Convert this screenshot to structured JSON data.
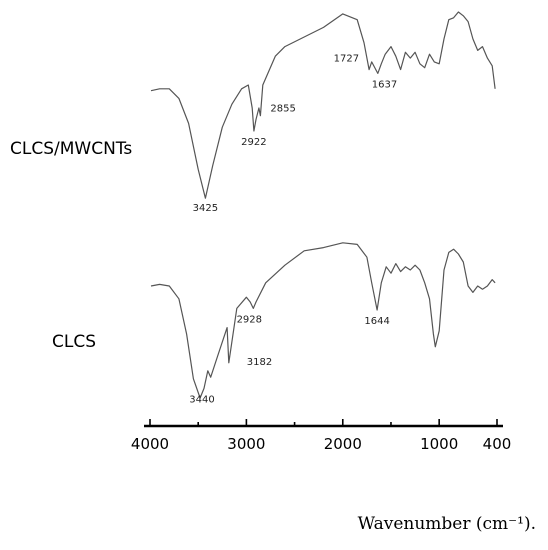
{
  "chart_data": {
    "type": "line",
    "xlabel": "Wavenumber (cm⁻¹).",
    "x_ticks": [
      4000,
      3000,
      2000,
      1000,
      400
    ],
    "xlim": [
      4000,
      400
    ],
    "x_reversed": true,
    "colors": {
      "trace": "#555555",
      "axis": "#000000"
    },
    "series": [
      {
        "name": "CLCS/MWCNTs",
        "points": [
          [
            3990,
            0.59
          ],
          [
            3900,
            0.6
          ],
          [
            3800,
            0.6
          ],
          [
            3700,
            0.55
          ],
          [
            3600,
            0.42
          ],
          [
            3500,
            0.18
          ],
          [
            3425,
            0.03
          ],
          [
            3350,
            0.2
          ],
          [
            3250,
            0.4
          ],
          [
            3150,
            0.52
          ],
          [
            3050,
            0.6
          ],
          [
            2980,
            0.62
          ],
          [
            2940,
            0.5
          ],
          [
            2922,
            0.38
          ],
          [
            2900,
            0.44
          ],
          [
            2870,
            0.5
          ],
          [
            2855,
            0.46
          ],
          [
            2830,
            0.62
          ],
          [
            2700,
            0.77
          ],
          [
            2600,
            0.82
          ],
          [
            2400,
            0.87
          ],
          [
            2200,
            0.92
          ],
          [
            2000,
            0.99
          ],
          [
            1850,
            0.96
          ],
          [
            1780,
            0.84
          ],
          [
            1727,
            0.7
          ],
          [
            1700,
            0.74
          ],
          [
            1637,
            0.68
          ],
          [
            1600,
            0.73
          ],
          [
            1560,
            0.78
          ],
          [
            1500,
            0.82
          ],
          [
            1450,
            0.77
          ],
          [
            1400,
            0.7
          ],
          [
            1350,
            0.79
          ],
          [
            1300,
            0.76
          ],
          [
            1250,
            0.79
          ],
          [
            1200,
            0.73
          ],
          [
            1150,
            0.71
          ],
          [
            1100,
            0.78
          ],
          [
            1050,
            0.74
          ],
          [
            1000,
            0.73
          ],
          [
            950,
            0.86
          ],
          [
            900,
            0.96
          ],
          [
            850,
            0.97
          ],
          [
            800,
            1.0
          ],
          [
            750,
            0.98
          ],
          [
            700,
            0.95
          ],
          [
            650,
            0.86
          ],
          [
            600,
            0.8
          ],
          [
            550,
            0.82
          ],
          [
            500,
            0.76
          ],
          [
            450,
            0.72
          ],
          [
            420,
            0.6
          ]
        ],
        "peaks": [
          {
            "x": 3425,
            "label": "3425"
          },
          {
            "x": 2922,
            "label": "2922"
          },
          {
            "x": 2855,
            "label": "2855"
          },
          {
            "x": 1727,
            "label": "1727"
          },
          {
            "x": 1637,
            "label": "1637"
          }
        ]
      },
      {
        "name": "CLCS",
        "points": [
          [
            3990,
            0.7
          ],
          [
            3900,
            0.71
          ],
          [
            3800,
            0.7
          ],
          [
            3700,
            0.62
          ],
          [
            3620,
            0.4
          ],
          [
            3550,
            0.12
          ],
          [
            3480,
            0.0
          ],
          [
            3440,
            0.06
          ],
          [
            3400,
            0.17
          ],
          [
            3370,
            0.13
          ],
          [
            3182,
            0.22
          ],
          [
            3300,
            0.26
          ],
          [
            3200,
            0.44
          ],
          [
            3100,
            0.56
          ],
          [
            3000,
            0.63
          ],
          [
            2960,
            0.6
          ],
          [
            2928,
            0.56
          ],
          [
            2900,
            0.6
          ],
          [
            2800,
            0.72
          ],
          [
            2600,
            0.83
          ],
          [
            2400,
            0.92
          ],
          [
            2200,
            0.94
          ],
          [
            2000,
            0.97
          ],
          [
            1850,
            0.96
          ],
          [
            1750,
            0.88
          ],
          [
            1700,
            0.72
          ],
          [
            1644,
            0.55
          ],
          [
            1600,
            0.72
          ],
          [
            1550,
            0.82
          ],
          [
            1500,
            0.78
          ],
          [
            1450,
            0.84
          ],
          [
            1400,
            0.79
          ],
          [
            1350,
            0.82
          ],
          [
            1300,
            0.8
          ],
          [
            1250,
            0.83
          ],
          [
            1200,
            0.8
          ],
          [
            1150,
            0.72
          ],
          [
            1100,
            0.62
          ],
          [
            1060,
            0.4
          ],
          [
            1040,
            0.32
          ],
          [
            1000,
            0.42
          ],
          [
            950,
            0.8
          ],
          [
            900,
            0.91
          ],
          [
            850,
            0.93
          ],
          [
            800,
            0.9
          ],
          [
            750,
            0.85
          ],
          [
            700,
            0.7
          ],
          [
            650,
            0.66
          ],
          [
            600,
            0.7
          ],
          [
            550,
            0.68
          ],
          [
            500,
            0.7
          ],
          [
            450,
            0.74
          ],
          [
            420,
            0.72
          ]
        ],
        "peaks": [
          {
            "x": 3440,
            "label": "3440"
          },
          {
            "x": 3182,
            "label": "3182"
          },
          {
            "x": 2928,
            "label": "2928"
          },
          {
            "x": 1644,
            "label": "1644"
          }
        ]
      }
    ]
  }
}
